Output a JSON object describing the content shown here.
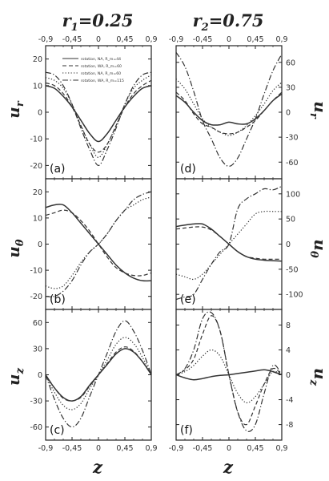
{
  "figure": {
    "col_titles": [
      {
        "var": "r",
        "sub": "1",
        "val": "=0.25"
      },
      {
        "var": "r",
        "sub": "2",
        "val": "=0.75"
      }
    ],
    "xlabel": "z",
    "ylabels": [
      {
        "sym": "u",
        "sub": "r"
      },
      {
        "sym": "u",
        "sub": "θ"
      },
      {
        "sym": "u",
        "sub": "z"
      }
    ],
    "ticks_z": [
      "-0,9",
      "-0,45",
      "0",
      "0,45",
      "0,9"
    ],
    "legend": [
      {
        "label": "rotation, NA, R_m=44",
        "style": "solid"
      },
      {
        "label": "rotation, WA, R_m=60",
        "style": "dash"
      },
      {
        "label": "rotation, NA, R_m=60",
        "style": "dot"
      },
      {
        "label": "rotation, WA, R_m=115",
        "style": "dashdot"
      }
    ],
    "series_styles": {
      "solid": "",
      "dash": "5,3",
      "dot": "1.3,2.2",
      "dashdot": "7,2.5,1.3,2.5"
    },
    "colors": {
      "ink": "#333333",
      "frame": "#222222",
      "panel_bg": "#ffffff"
    }
  },
  "chart_data": [
    {
      "type": "line",
      "panel_label": "(a)",
      "x": [
        -0.9,
        -0.75,
        -0.6,
        -0.45,
        -0.3,
        -0.15,
        0,
        0.15,
        0.3,
        0.45,
        0.6,
        0.75,
        0.9
      ],
      "xlim": [
        -0.9,
        0.9
      ],
      "ylim": [
        -25,
        25
      ],
      "yticks": [
        -20,
        -10,
        0,
        10,
        20
      ],
      "ylabel_side": "left",
      "series": [
        {
          "name": "rotation, NA, R_m=44",
          "style": "solid",
          "y": [
            10,
            9,
            6,
            2,
            -3,
            -8,
            -11,
            -8,
            -3,
            2,
            6,
            9,
            10
          ]
        },
        {
          "name": "rotation, WA, R_m=60",
          "style": "dash",
          "y": [
            11,
            10,
            7,
            2,
            -5,
            -12,
            -15,
            -12,
            -5,
            2,
            7,
            10,
            12
          ]
        },
        {
          "name": "rotation, NA, R_m=60",
          "style": "dot",
          "y": [
            13,
            12,
            9,
            3,
            -5,
            -12,
            -17,
            -12,
            -5,
            3,
            9,
            12,
            14
          ]
        },
        {
          "name": "rotation, WA, R_m=115",
          "style": "dashdot",
          "y": [
            15,
            14,
            10,
            3,
            -6,
            -14,
            -20,
            -14,
            -6,
            3,
            10,
            14,
            15
          ]
        }
      ]
    },
    {
      "type": "line",
      "panel_label": "(d)",
      "x": [
        -0.9,
        -0.75,
        -0.6,
        -0.45,
        -0.3,
        -0.15,
        0,
        0.15,
        0.3,
        0.45,
        0.6,
        0.75,
        0.9
      ],
      "xlim": [
        -0.9,
        0.9
      ],
      "ylim": [
        -80,
        80
      ],
      "yticks": [
        -60,
        -30,
        0,
        30,
        60
      ],
      "ylabel_side": "right",
      "series": [
        {
          "name": "rotation, NA, R_m=44",
          "style": "solid",
          "y": [
            20,
            12,
            0,
            -10,
            -15,
            -15,
            -12,
            -14,
            -14,
            -8,
            2,
            14,
            22
          ]
        },
        {
          "name": "rotation, WA, R_m=60",
          "style": "dash",
          "y": [
            24,
            14,
            -2,
            -14,
            -18,
            -24,
            -26,
            -24,
            -18,
            -10,
            2,
            14,
            24
          ]
        },
        {
          "name": "rotation, NA, R_m=60",
          "style": "dot",
          "y": [
            40,
            28,
            10,
            -8,
            -18,
            -24,
            -28,
            -24,
            -16,
            -4,
            10,
            26,
            36
          ]
        },
        {
          "name": "rotation, WA, R_m=115",
          "style": "dashdot",
          "y": [
            72,
            55,
            25,
            -10,
            -32,
            -55,
            -65,
            -55,
            -32,
            -8,
            22,
            50,
            70
          ]
        }
      ]
    },
    {
      "type": "line",
      "panel_label": "(b)",
      "x": [
        -0.9,
        -0.75,
        -0.6,
        -0.45,
        -0.3,
        -0.15,
        0,
        0.15,
        0.3,
        0.45,
        0.6,
        0.75,
        0.9
      ],
      "xlim": [
        -0.9,
        0.9
      ],
      "ylim": [
        -25,
        25
      ],
      "yticks": [
        -20,
        -10,
        0,
        10,
        20
      ],
      "ylabel_side": "left",
      "series": [
        {
          "name": "rotation, NA, R_m=44",
          "style": "solid",
          "y": [
            14,
            15,
            15,
            12,
            8,
            4,
            0,
            -4,
            -8,
            -11,
            -13,
            -14,
            -14
          ]
        },
        {
          "name": "rotation, WA, R_m=60",
          "style": "dash",
          "y": [
            11,
            12,
            13,
            12,
            9,
            5,
            0,
            -5,
            -9,
            -11,
            -12,
            -12,
            -11
          ]
        },
        {
          "name": "rotation, NA, R_m=60",
          "style": "dot",
          "y": [
            -16,
            -17,
            -16,
            -12,
            -7,
            -3,
            0,
            4,
            9,
            13,
            15,
            17,
            18
          ]
        },
        {
          "name": "rotation, WA, R_m=115",
          "style": "dashdot",
          "y": [
            -20,
            -20,
            -18,
            -14,
            -8,
            -3,
            0,
            4,
            9,
            13,
            17,
            19,
            20
          ]
        }
      ]
    },
    {
      "type": "line",
      "panel_label": "(e)",
      "x": [
        -0.9,
        -0.75,
        -0.6,
        -0.45,
        -0.3,
        -0.15,
        0,
        0.15,
        0.3,
        0.45,
        0.6,
        0.75,
        0.9
      ],
      "xlim": [
        -0.9,
        0.9
      ],
      "ylim": [
        -130,
        130
      ],
      "yticks": [
        -100,
        -50,
        0,
        50,
        100
      ],
      "ylabel_side": "right",
      "series": [
        {
          "name": "rotation, NA, R_m=44",
          "style": "solid",
          "y": [
            35,
            38,
            40,
            40,
            30,
            15,
            0,
            -15,
            -25,
            -30,
            -32,
            -33,
            -34
          ]
        },
        {
          "name": "rotation, WA, R_m=60",
          "style": "dash",
          "y": [
            30,
            32,
            34,
            34,
            28,
            15,
            0,
            -15,
            -25,
            -28,
            -30,
            -30,
            -30
          ]
        },
        {
          "name": "rotation, NA, R_m=60",
          "style": "dot",
          "y": [
            -60,
            -65,
            -70,
            -60,
            -40,
            -20,
            0,
            20,
            40,
            60,
            65,
            65,
            65
          ]
        },
        {
          "name": "rotation, WA, R_m=115",
          "style": "dashdot",
          "y": [
            -110,
            -105,
            -100,
            -70,
            -40,
            -15,
            0,
            70,
            90,
            100,
            110,
            108,
            115
          ]
        }
      ]
    },
    {
      "type": "line",
      "panel_label": "(c)",
      "x": [
        -0.9,
        -0.75,
        -0.6,
        -0.45,
        -0.3,
        -0.15,
        0,
        0.15,
        0.3,
        0.45,
        0.6,
        0.75,
        0.9
      ],
      "xlim": [
        -0.9,
        0.9
      ],
      "ylim": [
        -75,
        75
      ],
      "yticks": [
        -60,
        -30,
        0,
        30,
        60
      ],
      "ylabel_side": "left",
      "series": [
        {
          "name": "rotation, NA, R_m=44",
          "style": "solid",
          "y": [
            0,
            -15,
            -26,
            -30,
            -25,
            -12,
            0,
            12,
            24,
            30,
            26,
            15,
            0
          ]
        },
        {
          "name": "rotation, WA, R_m=60",
          "style": "dash",
          "y": [
            0,
            -15,
            -27,
            -30,
            -26,
            -13,
            0,
            13,
            26,
            32,
            27,
            15,
            0
          ]
        },
        {
          "name": "rotation, NA, R_m=60",
          "style": "dot",
          "y": [
            0,
            -20,
            -35,
            -40,
            -33,
            -16,
            0,
            17,
            35,
            43,
            36,
            20,
            0
          ]
        },
        {
          "name": "rotation, WA, R_m=115",
          "style": "dashdot",
          "y": [
            0,
            -28,
            -50,
            -60,
            -50,
            -25,
            0,
            25,
            50,
            62,
            50,
            28,
            0
          ]
        }
      ]
    },
    {
      "type": "line",
      "panel_label": "(f)",
      "x": [
        -0.9,
        -0.75,
        -0.6,
        -0.45,
        -0.3,
        -0.15,
        0,
        0.15,
        0.3,
        0.45,
        0.6,
        0.75,
        0.9
      ],
      "xlim": [
        -0.9,
        0.9
      ],
      "ylim": [
        -10.5,
        10.5
      ],
      "yticks": [
        -8,
        -4,
        0,
        4,
        8
      ],
      "ylabel_side": "right",
      "series": [
        {
          "name": "rotation, NA, R_m=44",
          "style": "solid",
          "y": [
            0,
            -0.5,
            -0.8,
            -0.6,
            -0.3,
            -0.1,
            0,
            0.2,
            0.4,
            0.6,
            0.8,
            0.5,
            0
          ]
        },
        {
          "name": "rotation, WA, R_m=60",
          "style": "dash",
          "y": [
            0,
            0.8,
            2.5,
            6.5,
            9.5,
            7,
            0,
            -6,
            -8,
            -5,
            -1.5,
            1,
            0
          ]
        },
        {
          "name": "rotation, NA, R_m=60",
          "style": "dot",
          "y": [
            0,
            0.5,
            1.5,
            3,
            4,
            3,
            0,
            -3,
            -4.5,
            -3.5,
            -1.5,
            0.5,
            0
          ]
        },
        {
          "name": "rotation, WA, R_m=115",
          "style": "dashdot",
          "y": [
            0,
            1,
            4,
            9,
            10,
            7,
            0,
            -6,
            -9,
            -8,
            -3,
            1.5,
            0
          ]
        }
      ]
    }
  ]
}
